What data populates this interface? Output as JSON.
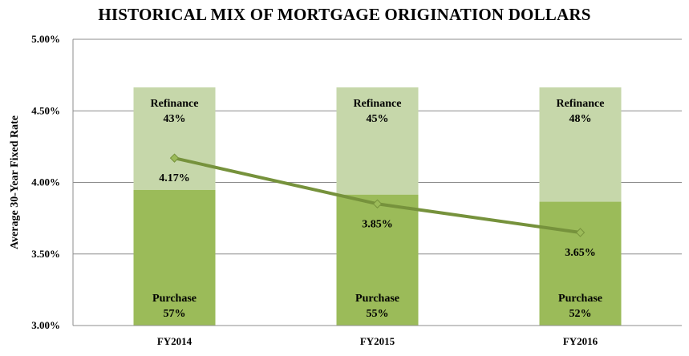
{
  "chart_data": {
    "type": "bar",
    "title": "HISTORICAL MIX OF MORTGAGE ORIGINATION DOLLARS",
    "ylabel": "Average 30-Year Fixed Rate",
    "xlabel": "",
    "ylim": [
      3.0,
      5.0
    ],
    "yticks": [
      "3.00%",
      "3.50%",
      "4.00%",
      "4.50%",
      "5.00%"
    ],
    "categories": [
      "FY2014",
      "FY2015",
      "FY2016"
    ],
    "stacked": true,
    "grid": true,
    "bar_series": [
      {
        "name": "Purchase",
        "values": [
          57,
          55,
          52
        ],
        "labels": [
          "57%",
          "55%",
          "52%"
        ],
        "color": "#9bbb59"
      },
      {
        "name": "Refinance",
        "values": [
          43,
          45,
          48
        ],
        "labels": [
          "43%",
          "45%",
          "48%"
        ],
        "color": "#c6d7aa"
      }
    ],
    "line_series": {
      "name": "Average 30-Year Fixed Rate",
      "values": [
        4.17,
        3.85,
        3.65
      ],
      "labels": [
        "4.17%",
        "3.85%",
        "3.65%"
      ],
      "color": "#76923c",
      "marker_color": "#9bbb59"
    }
  }
}
